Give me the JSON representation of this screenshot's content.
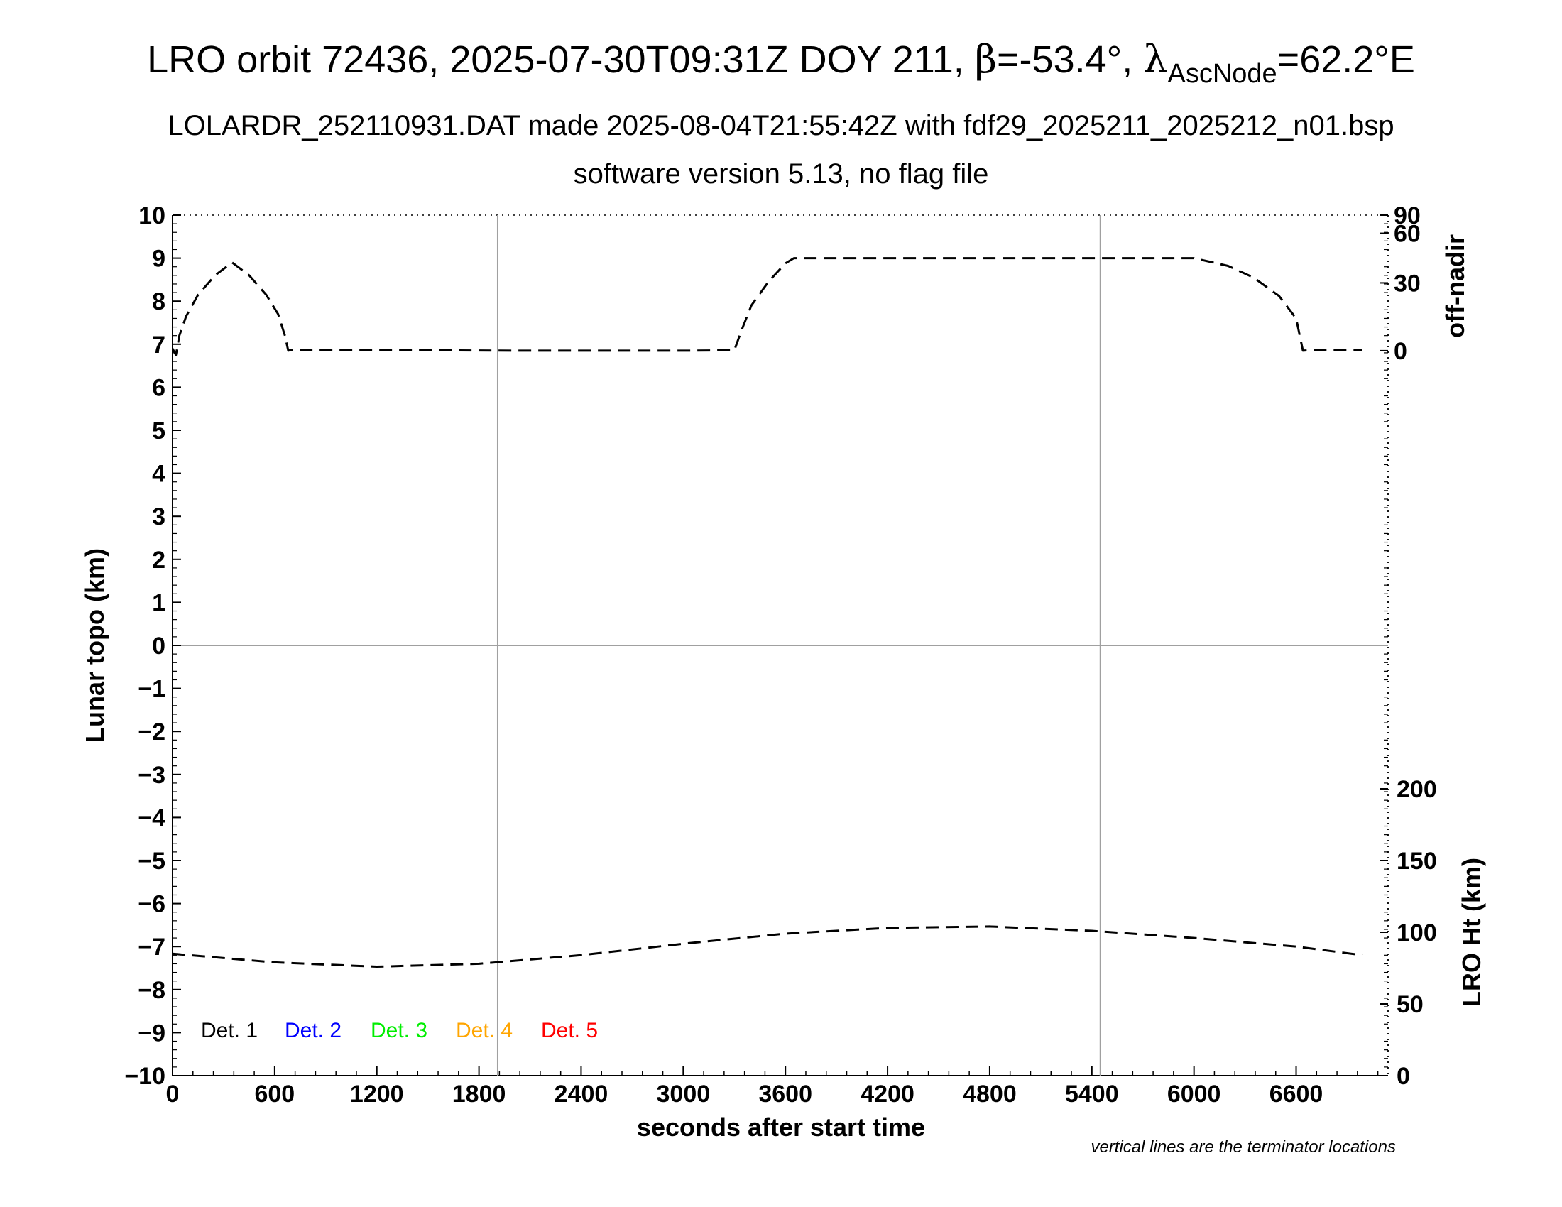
{
  "title": {
    "prefix": "LRO orbit 72436, 2025-07-30T09:31Z DOY 211, ",
    "beta_symbol": "β",
    "beta_value": "=-53.4°, ",
    "lambda_symbol": "λ",
    "lambda_subscript": "AscNode",
    "lambda_value": "=62.2°E"
  },
  "subtitle_1": "LOLARDR_252110931.DAT made 2025-08-04T21:55:42Z with fdf29_2025211_2025212_n01.bsp",
  "subtitle_2": "software version 5.13, no flag file",
  "footnote": "vertical lines are the terminator locations",
  "chart_data": {
    "type": "line",
    "xlabel": "seconds after start time",
    "ylabel_left": "Lunar topo (km)",
    "ylabel_right_top": "off-nadir",
    "ylabel_right_bottom": "LRO Ht (km)",
    "xlim": [
      0,
      7140
    ],
    "ylim": [
      -10,
      10
    ],
    "x_ticks": [
      "0",
      "600",
      "1200",
      "1800",
      "2400",
      "3000",
      "3600",
      "4200",
      "4800",
      "5400",
      "6000",
      "6600"
    ],
    "y_ticks_left": [
      "10",
      "9",
      "8",
      "7",
      "6",
      "5",
      "4",
      "3",
      "2",
      "1",
      "0",
      "−1",
      "−2",
      "−3",
      "−4",
      "−5",
      "−6",
      "−7",
      "−8",
      "−9",
      "−10"
    ],
    "off_nadir_ticks": [
      "90",
      "60",
      "30",
      "0"
    ],
    "lro_ht_ticks": [
      "200",
      "150",
      "100",
      "50",
      "0"
    ],
    "terminator_lines_x": [
      1910,
      5450
    ],
    "zero_line_y": 0,
    "legend": [
      {
        "label": "Det. 1",
        "color": "#000000"
      },
      {
        "label": "Det. 2",
        "color": "#0000ff"
      },
      {
        "label": "Det. 3",
        "color": "#00ee00"
      },
      {
        "label": "Det. 4",
        "color": "#ffa500"
      },
      {
        "label": "Det. 5",
        "color": "#ff0000"
      }
    ],
    "series": [
      {
        "name": "off-nadir",
        "units": "km (left axis)",
        "x": [
          0,
          20,
          40,
          80,
          150,
          250,
          350,
          450,
          550,
          620,
          660,
          680,
          700,
          1000,
          1500,
          2000,
          2500,
          3000,
          3300,
          3340,
          3400,
          3500,
          3600,
          3650,
          3700,
          4200,
          4800,
          5400,
          6000,
          6200,
          6350,
          6500,
          6600,
          6640,
          6700,
          6990
        ],
        "y": [
          6.9,
          6.75,
          7.2,
          7.65,
          8.15,
          8.6,
          8.9,
          8.6,
          8.15,
          7.7,
          7.2,
          6.85,
          6.87,
          6.87,
          6.86,
          6.85,
          6.85,
          6.85,
          6.86,
          7.3,
          7.9,
          8.45,
          8.88,
          9.0,
          9.0,
          9.0,
          9.0,
          9.0,
          9.0,
          8.82,
          8.55,
          8.12,
          7.6,
          6.85,
          6.87,
          6.87
        ]
      },
      {
        "name": "LRO Ht",
        "units": "km",
        "x": [
          0,
          600,
          1200,
          1800,
          2400,
          3000,
          3600,
          4200,
          4800,
          5400,
          6000,
          6600,
          6990
        ],
        "y": [
          85,
          79,
          76,
          78,
          84,
          92,
          99,
          103,
          104,
          101,
          96,
          90,
          84
        ]
      }
    ]
  }
}
